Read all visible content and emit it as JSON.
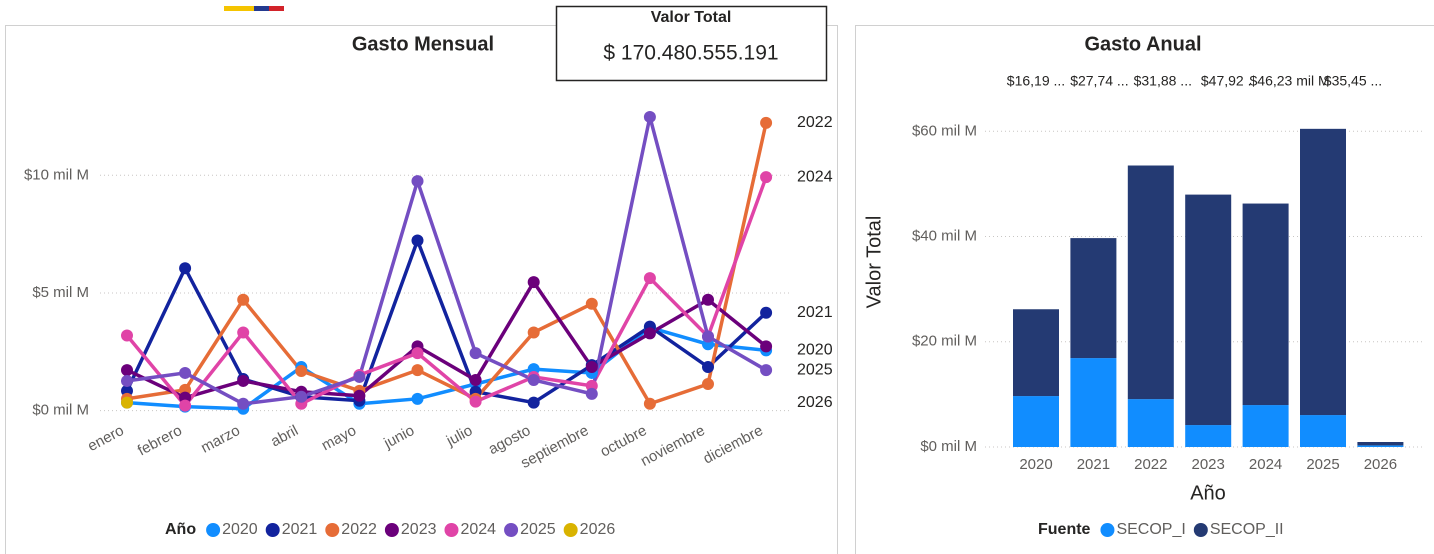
{
  "card": {
    "title": "Valor Total",
    "value": "$ 170.480.555.191"
  },
  "chart_data": [
    {
      "type": "line",
      "title": "Gasto Mensual",
      "legend_title": "Año",
      "legend": "bottom",
      "grid": true,
      "categories": [
        "enero",
        "febrero",
        "marzo",
        "abril",
        "mayo",
        "junio",
        "julio",
        "agosto",
        "septiembre",
        "octubre",
        "noviembre",
        "diciembre"
      ],
      "ylim": [
        -0.4,
        13.2
      ],
      "yticks": [
        {
          "value": 0,
          "label": "$0 mil M"
        },
        {
          "value": 5,
          "label": "$5 mil M"
        },
        {
          "value": 10,
          "label": "$10 mil M"
        }
      ],
      "series": [
        {
          "name": "2020",
          "color": "#118DFF",
          "values": [
            0.34,
            0.17,
            0.08,
            1.85,
            0.29,
            0.5,
            1.13,
            1.76,
            1.6,
            3.53,
            2.82,
            2.56
          ]
        },
        {
          "name": "2021",
          "color": "#12239E",
          "values": [
            0.84,
            6.05,
            1.34,
            0.59,
            0.42,
            7.23,
            0.8,
            0.34,
            1.93,
            3.57,
            1.85,
            4.16
          ]
        },
        {
          "name": "2022",
          "color": "#E66C37",
          "values": [
            0.5,
            0.88,
            4.71,
            1.68,
            0.84,
            1.72,
            0.5,
            3.32,
            4.54,
            0.29,
            1.13,
            12.23
          ]
        },
        {
          "name": "2023",
          "color": "#6B007B",
          "values": [
            1.72,
            0.55,
            1.26,
            0.8,
            0.63,
            2.73,
            1.3,
            5.46,
            1.85,
            3.28,
            4.71,
            2.73
          ]
        },
        {
          "name": "2024",
          "color": "#E044A7",
          "values": [
            3.19,
            0.21,
            3.32,
            0.29,
            1.51,
            2.44,
            0.38,
            1.43,
            1.05,
            5.63,
            3.15,
            9.92
          ]
        },
        {
          "name": "2025",
          "color": "#744EC2",
          "values": [
            1.26,
            1.6,
            0.29,
            0.59,
            1.43,
            9.75,
            2.44,
            1.3,
            0.71,
            12.48,
            3.15,
            1.72
          ]
        },
        {
          "name": "2026",
          "color": "#D9B300",
          "values": [
            0.34,
            null,
            null,
            null,
            null,
            null,
            null,
            null,
            null,
            null,
            null,
            null
          ]
        }
      ]
    },
    {
      "type": "stacked_bar",
      "title": "Gasto Anual",
      "x_label": "Año",
      "y_label": "Valor Total",
      "legend_title": "Fuente",
      "legend": "bottom",
      "grid": true,
      "categories": [
        "2020",
        "2021",
        "2022",
        "2023",
        "2024",
        "2025",
        "2026"
      ],
      "ylim": [
        0,
        65
      ],
      "yticks": [
        {
          "value": 0,
          "label": "$0 mil M"
        },
        {
          "value": 20,
          "label": "$20 mil M"
        },
        {
          "value": 40,
          "label": "$40 mil M"
        },
        {
          "value": 60,
          "label": "$60 mil M"
        }
      ],
      "annotations": [
        "$16,19 ...",
        "$27,74 ...",
        "$31,88 ...",
        "$47,92 .",
        "$46,23 mil M",
        "$35,45 ..."
      ],
      "series": [
        {
          "name": "SECOP_I",
          "color": "#118DFF",
          "values": [
            9.68,
            16.9,
            9.1,
            4.17,
            7.97,
            6.07,
            0.3
          ]
        },
        {
          "name": "SECOP_II",
          "color": "#243A73",
          "values": [
            16.5,
            22.8,
            44.4,
            43.8,
            38.3,
            54.4,
            0.65
          ]
        }
      ]
    }
  ]
}
